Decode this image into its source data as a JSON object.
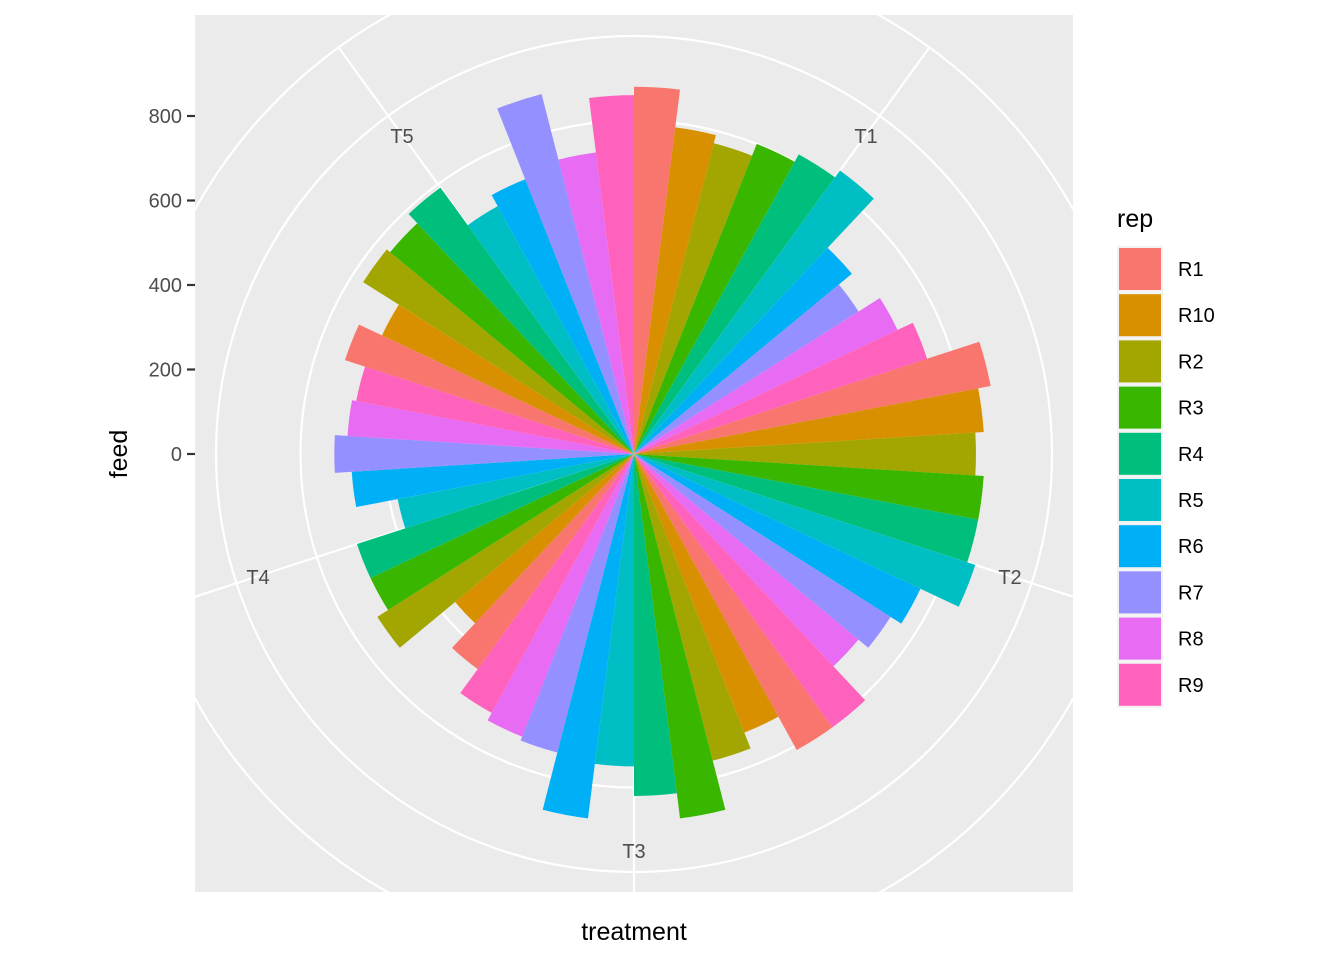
{
  "chart_data": {
    "type": "bar",
    "coord": "polar",
    "xlabel": "treatment",
    "ylabel": "feed",
    "y_ticks": [
      0,
      200,
      400,
      600,
      800
    ],
    "ylim": [
      -270,
      1000
    ],
    "categories": [
      "T1",
      "T2",
      "T3",
      "T4",
      "T5"
    ],
    "legend": {
      "title": "rep",
      "position": "right",
      "entries": [
        "R1",
        "R10",
        "R2",
        "R3",
        "R4",
        "R5",
        "R6",
        "R7",
        "R8",
        "R9"
      ],
      "colors": [
        "#F8766D",
        "#D89000",
        "#A3A500",
        "#39B600",
        "#00BF7D",
        "#00BFC4",
        "#00B0F6",
        "#9590FF",
        "#E76BF3",
        "#FF62BC"
      ]
    },
    "series": [
      {
        "name": "R1",
        "values": [
          680,
          670,
          610,
          440,
          530
        ]
      },
      {
        "name": "R10",
        "values": [
          590,
          640,
          520,
          360,
          470
        ]
      },
      {
        "name": "R2",
        "values": [
          570,
          620,
          560,
          530,
          570
        ]
      },
      {
        "name": "R3",
        "values": [
          600,
          640,
          680,
          500,
          560
        ]
      },
      {
        "name": "R4",
        "values": [
          620,
          640,
          620,
          500,
          590
        ]
      },
      {
        "name": "R5",
        "values": [
          640,
          660,
          550,
          380,
          480
        ]
      },
      {
        "name": "R6",
        "values": [
          480,
          560,
          680,
          480,
          510
        ]
      },
      {
        "name": "R7",
        "values": [
          440,
          530,
          540,
          520,
          690
        ]
      },
      {
        "name": "R8",
        "values": [
          500,
          500,
          530,
          490,
          530
        ]
      },
      {
        "name": "R9",
        "values": [
          540,
          610,
          510,
          480,
          660
        ]
      }
    ],
    "grid": true
  }
}
